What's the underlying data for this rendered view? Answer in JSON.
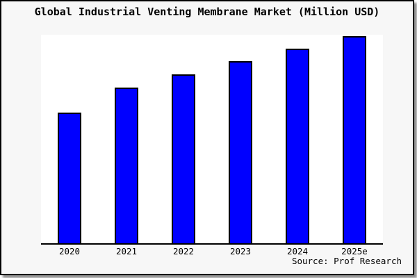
{
  "chart_data": {
    "type": "bar",
    "title": "Global Industrial Venting Membrane Market (Million USD)",
    "categories": [
      "2020",
      "2021",
      "2022",
      "2023",
      "2024",
      "2025e"
    ],
    "values": [
      63,
      75.2,
      81.6,
      87.9,
      93.9,
      100
    ],
    "values_unit": "percent of 2025e bar height (axis unlabeled)",
    "xlabel": "",
    "ylabel": "",
    "ylim": [
      0,
      100.5
    ],
    "yaxis_visible": false,
    "gridlines": false,
    "legend_position": "none",
    "bar_color": "#0000ff",
    "bar_border_color": "#000000"
  },
  "footer": {
    "source": "Source: Prof Research"
  },
  "colors": {
    "card_background": "#f7f7f7",
    "plot_background": "#ffffff",
    "axis": "#000000",
    "frame_border": "#000000",
    "shadow": "#8f8f8f",
    "text": "#000000"
  }
}
